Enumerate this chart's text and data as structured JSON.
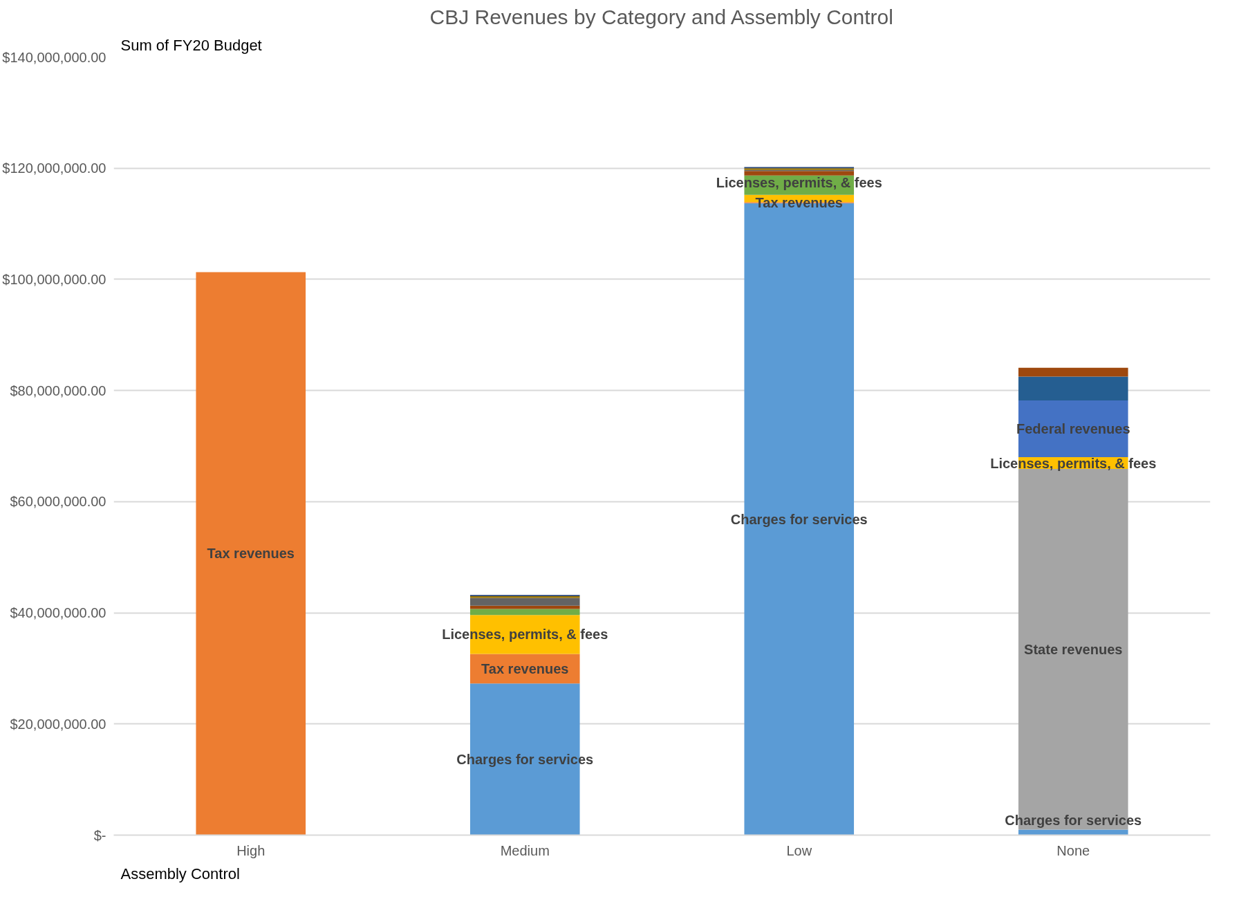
{
  "chart_data": {
    "type": "bar",
    "stacked": true,
    "title": "CBJ Revenues by Category and Assembly Control",
    "annotations": [
      "Sum of FY20 Budget",
      "Assembly Control"
    ],
    "categories": [
      "High",
      "Medium",
      "Low",
      "None"
    ],
    "series": [
      {
        "name": "Charges for services",
        "color": "#5b9bd5",
        "values": [
          null,
          27300000,
          113700000,
          1000000
        ]
      },
      {
        "name": "Tax revenues",
        "color": "#ed7d31",
        "values": [
          101300000,
          5300000,
          200000,
          null
        ]
      },
      {
        "name": "State revenues",
        "color": "#a5a5a5",
        "values": [
          null,
          null,
          null,
          64900000
        ]
      },
      {
        "name": "Licenses, permits, & fees",
        "color": "#ffc000",
        "values": [
          null,
          7000000,
          1300000,
          2100000
        ]
      },
      {
        "name": "Federal revenues",
        "color": "#4472c4",
        "values": [
          null,
          null,
          null,
          10200000
        ]
      },
      {
        "color": "#70ad47",
        "values": [
          null,
          1100000,
          3500000,
          null
        ]
      },
      {
        "color": "#255e91",
        "values": [
          null,
          null,
          null,
          4300000
        ]
      },
      {
        "color": "#9e480e",
        "values": [
          null,
          600000,
          800000,
          1600000
        ]
      },
      {
        "color": "#636363",
        "values": [
          null,
          1400000,
          200000,
          null
        ]
      },
      {
        "color": "#997300",
        "values": [
          null,
          300000,
          300000,
          null
        ]
      },
      {
        "color": "#264478",
        "values": [
          null,
          200000,
          200000,
          null
        ]
      }
    ],
    "ylim": [
      0,
      140000000
    ],
    "yticks": [
      {
        "value": 0,
        "label": "$-"
      },
      {
        "value": 20000000,
        "label": "$20,000,000.00"
      },
      {
        "value": 40000000,
        "label": "$40,000,000.00"
      },
      {
        "value": 60000000,
        "label": "$60,000,000.00"
      },
      {
        "value": 80000000,
        "label": "$80,000,000.00"
      },
      {
        "value": 100000000,
        "label": "$100,000,000.00"
      },
      {
        "value": 120000000,
        "label": "$120,000,000.00"
      },
      {
        "value": 140000000,
        "label": "$140,000,000.00"
      }
    ],
    "grid": "y"
  }
}
